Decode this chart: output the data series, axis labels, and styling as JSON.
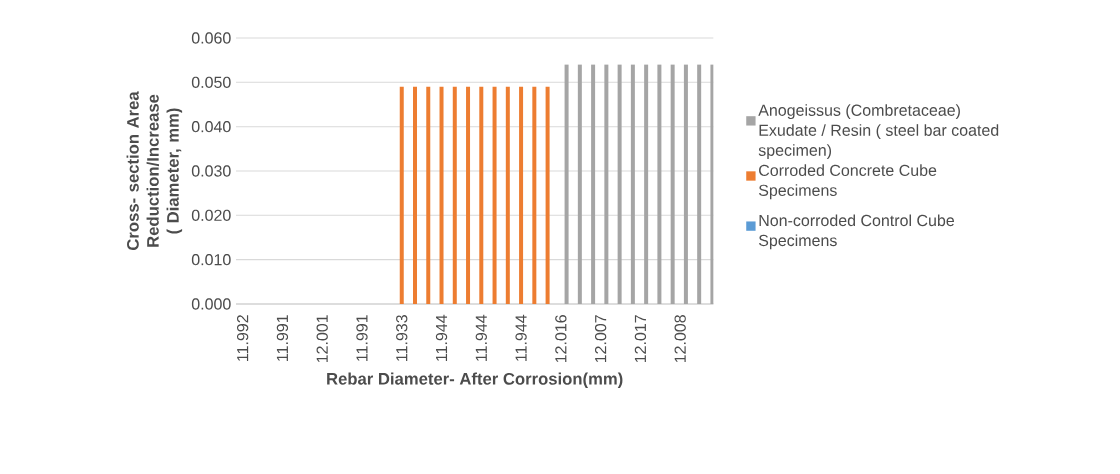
{
  "chart_data": {
    "type": "bar",
    "xlabel": "Rebar Diameter- After Corrosion(mm)",
    "ylabel": "Cross- section Area Reduction/Increase ( Diameter, mm)",
    "categories": [
      "11.992",
      null,
      null,
      "11.991",
      null,
      null,
      "12.001",
      null,
      null,
      "11.991",
      null,
      null,
      "11.933",
      null,
      null,
      "11.944",
      null,
      null,
      "11.944",
      null,
      null,
      "11.944",
      null,
      null,
      "12.016",
      null,
      null,
      "12.007",
      null,
      null,
      "12.017",
      null,
      null,
      "12.008",
      null,
      null
    ],
    "series": [
      {
        "name": "Non-corroded Control Cube Specimens",
        "color": "#5b9bd5",
        "values": [
          0,
          0,
          0,
          0,
          0,
          0,
          0,
          0,
          0,
          0,
          0,
          0,
          null,
          null,
          null,
          null,
          null,
          null,
          null,
          null,
          null,
          null,
          null,
          null,
          null,
          null,
          null,
          null,
          null,
          null,
          null,
          null,
          null,
          null,
          null,
          null
        ]
      },
      {
        "name": "Corroded Concrete Cube Specimens",
        "color": "#ed7d31",
        "values": [
          null,
          null,
          null,
          null,
          null,
          null,
          null,
          null,
          null,
          null,
          null,
          null,
          0.049,
          0.049,
          0.049,
          0.049,
          0.049,
          0.049,
          0.049,
          0.049,
          0.049,
          0.049,
          0.049,
          0.049,
          null,
          null,
          null,
          null,
          null,
          null,
          null,
          null,
          null,
          null,
          null,
          null
        ]
      },
      {
        "name": "Anogeissus (Combretaceae) Exudate / Resin ( steel bar coated specimen)",
        "color": "#a5a5a5",
        "values": [
          null,
          null,
          null,
          null,
          null,
          null,
          null,
          null,
          null,
          null,
          null,
          null,
          null,
          null,
          null,
          null,
          null,
          null,
          null,
          null,
          null,
          null,
          null,
          null,
          0.054,
          0.054,
          0.054,
          0.054,
          0.054,
          0.054,
          0.054,
          0.054,
          0.054,
          0.054,
          0.054,
          0.054
        ]
      }
    ],
    "ylim": [
      0,
      0.06
    ],
    "yticks": [
      {
        "value": 0,
        "label": "0.000"
      },
      {
        "value": 0.01,
        "label": "0.010"
      },
      {
        "value": 0.02,
        "label": "0.020"
      },
      {
        "value": 0.03,
        "label": "0.030"
      },
      {
        "value": 0.04,
        "label": "0.040"
      },
      {
        "value": 0.05,
        "label": "0.050"
      },
      {
        "value": 0.06,
        "label": "0.060"
      }
    ],
    "grid": "y",
    "legend": "right"
  }
}
